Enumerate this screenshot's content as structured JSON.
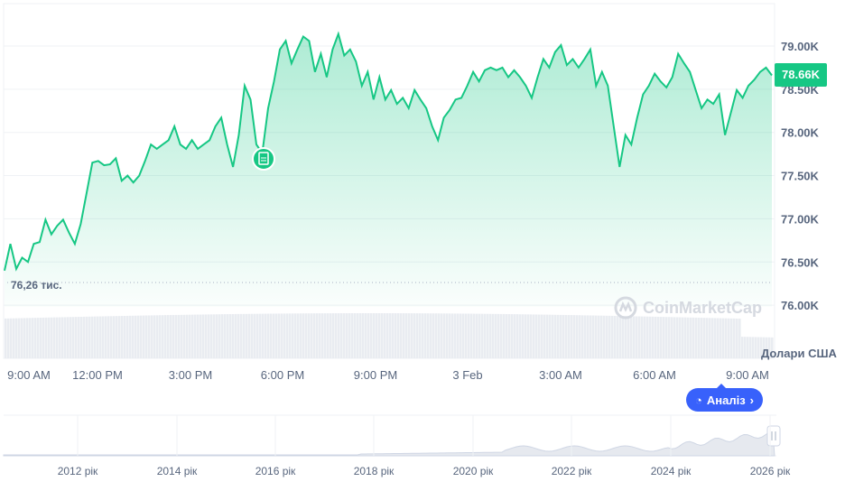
{
  "chart_data": {
    "type": "area",
    "currency_label": "Долари США",
    "current_price_label": "78.66K",
    "min_label": "76,26 тис.",
    "y_ticks": [
      "79.00K",
      "78.50K",
      "78.00K",
      "77.50K",
      "77.00K",
      "76.50K",
      "76.00K"
    ],
    "ylim": [
      76000,
      79000
    ],
    "x_ticks": [
      "9:00 AM",
      "12:00 PM",
      "3:00 PM",
      "6:00 PM",
      "9:00 PM",
      "3 Feb",
      "3:00 AM",
      "6:00 AM",
      "9:00 AM"
    ],
    "navigator_ticks": [
      "2012 рік",
      "2014 рік",
      "2016 рік",
      "2018 рік",
      "2020 рік",
      "2022 рік",
      "2024 рік",
      "2026 рік"
    ],
    "grid": true,
    "line_color": "#16c784",
    "values": [
      76.4,
      76.71,
      76.42,
      76.55,
      76.5,
      76.71,
      76.73,
      76.99,
      76.82,
      76.92,
      76.99,
      76.84,
      76.71,
      76.94,
      77.29,
      77.65,
      77.67,
      77.62,
      77.63,
      77.7,
      77.44,
      77.5,
      77.42,
      77.5,
      77.67,
      77.86,
      77.81,
      77.86,
      77.91,
      78.07,
      77.86,
      77.81,
      77.91,
      77.81,
      77.86,
      77.91,
      78.07,
      78.17,
      77.86,
      77.6,
      77.97,
      78.54,
      78.38,
      77.86,
      77.76,
      78.28,
      78.59,
      78.96,
      79.06,
      78.8,
      78.96,
      79.11,
      79.06,
      78.7,
      78.91,
      78.64,
      78.96,
      79.14,
      78.89,
      78.96,
      78.82,
      78.54,
      78.7,
      78.38,
      78.64,
      78.38,
      78.49,
      78.33,
      78.4,
      78.28,
      78.49,
      78.38,
      78.28,
      78.07,
      77.91,
      78.17,
      78.26,
      78.38,
      78.4,
      78.54,
      78.7,
      78.59,
      78.72,
      78.75,
      78.72,
      78.75,
      78.64,
      78.72,
      78.64,
      78.54,
      78.4,
      78.64,
      78.85,
      78.75,
      78.93,
      79.01,
      78.78,
      78.85,
      78.75,
      78.85,
      78.96,
      78.54,
      78.7,
      78.54,
      78.07,
      77.6,
      77.97,
      77.86,
      78.17,
      78.44,
      78.54,
      78.68,
      78.59,
      78.52,
      78.64,
      78.91,
      78.8,
      78.7,
      78.49,
      78.28,
      78.38,
      78.33,
      78.44,
      77.97,
      78.23,
      78.49,
      78.4,
      78.54,
      78.61,
      78.7,
      78.75,
      78.66
    ]
  },
  "watermark": "CoinMarketCap",
  "analysis_button": "Аналіз",
  "analysis_chevron": "›"
}
